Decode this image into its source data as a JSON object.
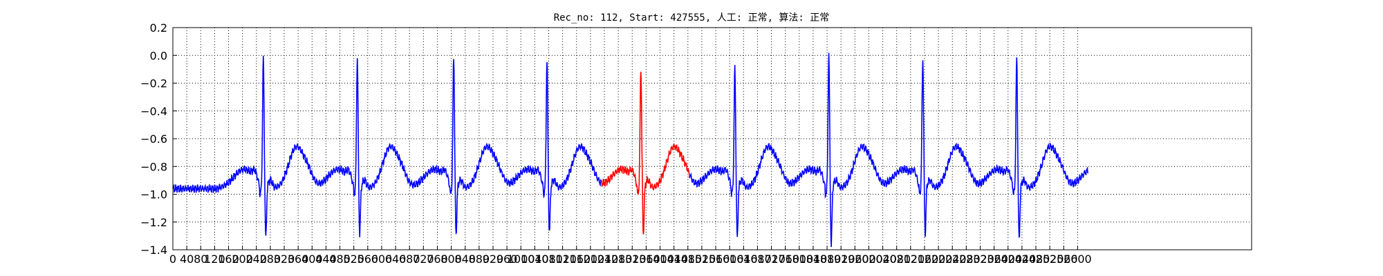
{
  "chart_data": {
    "type": "line",
    "title": "Rec_no: 112, Start: 427555, 人工: 正常, 算法: 正常",
    "xlabel": "",
    "ylabel": "",
    "xlim": [
      0,
      3100
    ],
    "ylim": [
      -1.4,
      0.2
    ],
    "grid": true,
    "legend": "none",
    "colors": {
      "normal": "#0000ff",
      "highlight": "#ff0000",
      "grid": "#000000"
    },
    "x_ticks": [
      0,
      40,
      80,
      120,
      160,
      200,
      240,
      280,
      320,
      360,
      400,
      440,
      480,
      520,
      560,
      600,
      640,
      680,
      720,
      760,
      800,
      840,
      880,
      920,
      960,
      1000,
      1040,
      1080,
      1120,
      1160,
      1200,
      1240,
      1280,
      1320,
      1360,
      1400,
      1440,
      1480,
      1520,
      1560,
      1600,
      1640,
      1680,
      1720,
      1760,
      1800,
      1840,
      1880,
      1920,
      1960,
      2000,
      2040,
      2080,
      2120,
      2160,
      2200,
      2240,
      2280,
      2320,
      2360,
      2400,
      2440,
      2480,
      2520,
      2560,
      2600
    ],
    "y_ticks": [
      0.2,
      0.0,
      -0.2,
      -0.4,
      -0.6,
      -0.8,
      -1.0,
      -1.2,
      -1.4
    ],
    "y_tick_labels": [
      "0.2",
      "0.0",
      "−0.2",
      "−0.4",
      "−0.6",
      "−0.8",
      "−1.0",
      "−1.2",
      "−1.4"
    ],
    "beat_period": 270,
    "x_end": 2630,
    "r_peaks": [
      {
        "x": 260,
        "r": -0.02,
        "s": -1.33,
        "color": "normal"
      },
      {
        "x": 530,
        "r": -0.02,
        "s": -1.3,
        "color": "normal"
      },
      {
        "x": 807,
        "r": 0.0,
        "s": -1.3,
        "color": "normal"
      },
      {
        "x": 1075,
        "r": -0.03,
        "s": -1.29,
        "color": "normal"
      },
      {
        "x": 1345,
        "r": -0.09,
        "s": -1.3,
        "color": "highlight"
      },
      {
        "x": 1615,
        "r": -0.09,
        "s": -1.33,
        "color": "normal"
      },
      {
        "x": 1885,
        "r": 0.0,
        "s": -1.38,
        "color": "normal"
      },
      {
        "x": 2155,
        "r": -0.03,
        "s": -1.29,
        "color": "normal"
      },
      {
        "x": 2425,
        "r": -0.02,
        "s": -1.34,
        "color": "normal"
      },
      {
        "x": 2695,
        "r": -0.05,
        "s": -1.34,
        "color": "normal"
      }
    ],
    "highlight_range": [
      1230,
      1485
    ]
  }
}
